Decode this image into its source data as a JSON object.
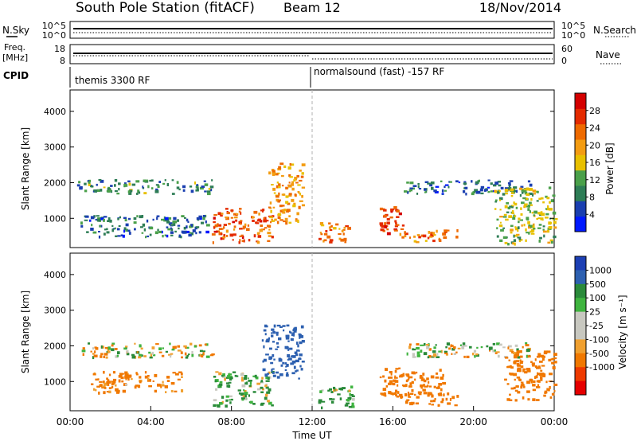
{
  "header": {
    "title": "South Pole Station (fitACF)",
    "beam": "Beam 12",
    "date": "18/Nov/2014"
  },
  "noise_panel": {
    "left_label": "N.Sky",
    "left_ticks": [
      "10^5",
      "10^0"
    ],
    "right_label": "N.Search",
    "right_ticks": [
      "10^5",
      "10^0"
    ]
  },
  "freq_panel": {
    "left_label_1": "Freq.",
    "left_label_2": "[MHz]",
    "left_ticks": [
      "18",
      "8"
    ],
    "right_label": "Nave",
    "right_ticks": [
      "60",
      "0"
    ]
  },
  "cpid_panel": {
    "label": "CPID",
    "segments": [
      {
        "start": 0,
        "label": "themis 3300 RF"
      },
      {
        "start": 12,
        "label": "normalsound (fast) -157 RF"
      }
    ]
  },
  "colors": {
    "power_scale": [
      "#0019ff",
      "#1a3fb0",
      "#2e7d56",
      "#4aa04a",
      "#e8c000",
      "#f39c12",
      "#ee6a00",
      "#e42b00",
      "#d40000"
    ],
    "velocity_scale": [
      "#e60000",
      "#ee3a00",
      "#f07800",
      "#f0a030",
      "#c8c8c0",
      "#c8c8c0",
      "#3fb43f",
      "#2a8a3a",
      "#2d60b0",
      "#1c3fb4"
    ]
  },
  "chart_data": [
    {
      "type": "heatmap",
      "name": "power",
      "xlabel": "",
      "ylabel": "Slant Range [km]",
      "xlim": [
        0,
        24
      ],
      "ylim": [
        180,
        4600
      ],
      "yticks": [
        "1000",
        "2000",
        "3000",
        "4000"
      ],
      "ytick_values": [
        1000,
        2000,
        3000,
        4000
      ],
      "colorbar": {
        "label": "Power [dB]",
        "range": [
          0,
          32
        ],
        "ticks": [
          "4",
          "8",
          "12",
          "16",
          "20",
          "24",
          "28"
        ],
        "tick_values": [
          4,
          8,
          12,
          16,
          20,
          24,
          28
        ]
      },
      "echo_regions": [
        {
          "t0": 0.3,
          "t1": 7.0,
          "r0": 1700,
          "r1": 2100,
          "value": 10
        },
        {
          "t0": 0.5,
          "t1": 6.8,
          "r0": 500,
          "r1": 1100,
          "value": 8
        },
        {
          "t0": 7.0,
          "t1": 10.0,
          "r0": 350,
          "r1": 1300,
          "value": 24
        },
        {
          "t0": 9.8,
          "t1": 11.5,
          "r0": 900,
          "r1": 2600,
          "value": 20
        },
        {
          "t0": 12.3,
          "t1": 13.8,
          "r0": 350,
          "r1": 900,
          "value": 22
        },
        {
          "t0": 15.3,
          "t1": 16.5,
          "r0": 600,
          "r1": 1400,
          "value": 26
        },
        {
          "t0": 16.3,
          "t1": 19.2,
          "r0": 350,
          "r1": 700,
          "value": 22
        },
        {
          "t0": 16.5,
          "t1": 22.8,
          "r0": 1700,
          "r1": 2100,
          "value": 8
        },
        {
          "t0": 21.0,
          "t1": 24.0,
          "r0": 300,
          "r1": 1900,
          "value": 14
        }
      ]
    },
    {
      "type": "heatmap",
      "name": "velocity",
      "xlabel": "Time UT",
      "ylabel": "Slant Range [km]",
      "xlim": [
        0,
        24
      ],
      "ylim": [
        180,
        4600
      ],
      "xticks": [
        "00:00",
        "04:00",
        "08:00",
        "12:00",
        "16:00",
        "20:00",
        "00:00"
      ],
      "xtick_values": [
        0,
        4,
        8,
        12,
        16,
        20,
        24
      ],
      "yticks": [
        "1000",
        "2000",
        "3000",
        "4000"
      ],
      "ytick_values": [
        1000,
        2000,
        3000,
        4000
      ],
      "colorbar": {
        "label": "Velocity [m s⁻¹]",
        "ticks": [
          "1000",
          "500",
          "100",
          "25",
          "-25",
          "-100",
          "-500",
          "-1000"
        ],
        "tick_values": [
          1000,
          500,
          100,
          25,
          -25,
          -100,
          -500,
          -1000
        ]
      },
      "echo_regions": [
        {
          "t0": 0.3,
          "t1": 7.0,
          "r0": 1700,
          "r1": 2100,
          "value": 0
        },
        {
          "t0": 1.0,
          "t1": 5.5,
          "r0": 700,
          "r1": 1300,
          "value": -200
        },
        {
          "t0": 7.0,
          "t1": 10.0,
          "r0": 350,
          "r1": 1300,
          "value": 100
        },
        {
          "t0": 9.5,
          "t1": 11.5,
          "r0": 1100,
          "r1": 2600,
          "value": 700
        },
        {
          "t0": 12.3,
          "t1": 14.0,
          "r0": 300,
          "r1": 900,
          "value": 120
        },
        {
          "t0": 15.3,
          "t1": 18.5,
          "r0": 600,
          "r1": 1400,
          "value": -300
        },
        {
          "t0": 16.3,
          "t1": 19.2,
          "r0": 350,
          "r1": 700,
          "value": -300
        },
        {
          "t0": 16.5,
          "t1": 22.8,
          "r0": 1700,
          "r1": 2100,
          "value": 0
        },
        {
          "t0": 21.5,
          "t1": 24.0,
          "r0": 500,
          "r1": 1900,
          "value": -300
        }
      ]
    }
  ]
}
